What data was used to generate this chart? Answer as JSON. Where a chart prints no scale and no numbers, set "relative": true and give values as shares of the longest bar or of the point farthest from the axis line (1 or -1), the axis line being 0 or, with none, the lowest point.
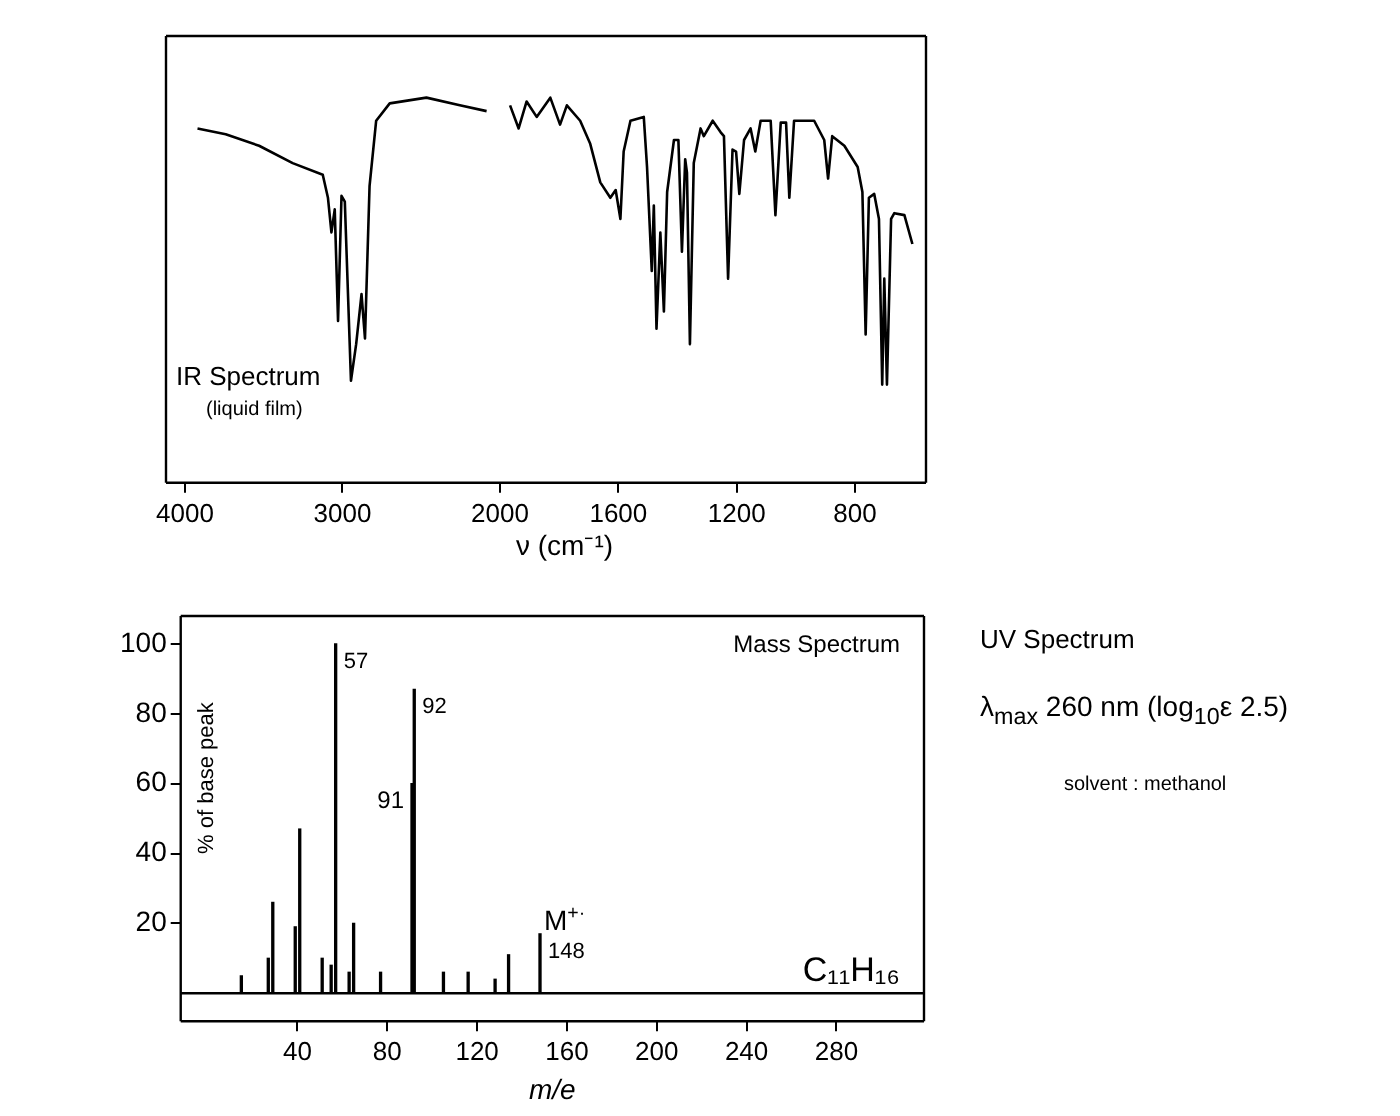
{
  "chart_data": [
    {
      "type": "line",
      "title": "IR Spectrum",
      "subtitle": "(liquid film)",
      "relative": true,
      "color": "#000000",
      "marker": "none",
      "legend": false,
      "grid": false,
      "x": [
        3920,
        3741,
        3529,
        3316,
        3125,
        3092,
        3070,
        3049,
        3028,
        3006,
        2985,
        2946,
        2913,
        2879,
        2857,
        2828,
        2786,
        2700,
        2467,
        2255,
        2085
      ],
      "values": [
        0.92,
        0.905,
        0.875,
        0.83,
        0.8,
        0.74,
        0.65,
        0.71,
        0.42,
        0.745,
        0.73,
        0.265,
        0.36,
        0.49,
        0.375,
        0.77,
        0.94,
        0.985,
        1.0,
        0.98,
        0.965
      ],
      "xlim": [
        4120,
        2000
      ],
      "xticks": [
        4000,
        3000,
        2000
      ]
    },
    {
      "type": "line",
      "xlabel": "ν (cm⁻¹)",
      "relative": true,
      "color": "#000000",
      "marker": "none",
      "legend": false,
      "grid": false,
      "x": [
        1966,
        1937,
        1910,
        1876,
        1830,
        1797,
        1774,
        1729,
        1695,
        1661,
        1627,
        1609,
        1593,
        1582,
        1559,
        1514,
        1503,
        1487,
        1480,
        1471,
        1458,
        1446,
        1435,
        1412,
        1397,
        1385,
        1374,
        1368,
        1358,
        1345,
        1322,
        1311,
        1281,
        1254,
        1243,
        1229,
        1214,
        1202,
        1191,
        1175,
        1153,
        1137,
        1119,
        1085,
        1069,
        1051,
        1033,
        1022,
        1006,
        938,
        904,
        891,
        877,
        836,
        791,
        775,
        764,
        753,
        735,
        719,
        708,
        701,
        692,
        678,
        667,
        633,
        606
      ],
      "values": [
        0.98,
        0.92,
        0.99,
        0.95,
        1.0,
        0.93,
        0.98,
        0.94,
        0.88,
        0.78,
        0.74,
        0.76,
        0.685,
        0.86,
        0.94,
        0.95,
        0.82,
        0.55,
        0.72,
        0.4,
        0.65,
        0.445,
        0.755,
        0.89,
        0.89,
        0.6,
        0.84,
        0.805,
        0.36,
        0.83,
        0.92,
        0.9,
        0.94,
        0.91,
        0.9,
        0.53,
        0.865,
        0.86,
        0.75,
        0.89,
        0.92,
        0.86,
        0.94,
        0.94,
        0.695,
        0.935,
        0.935,
        0.74,
        0.94,
        0.94,
        0.89,
        0.79,
        0.9,
        0.875,
        0.82,
        0.755,
        0.385,
        0.74,
        0.75,
        0.685,
        0.255,
        0.53,
        0.255,
        0.685,
        0.7,
        0.695,
        0.62
      ],
      "xlim": [
        2000,
        560
      ],
      "xticks": [
        1600,
        1200,
        800
      ]
    },
    {
      "type": "bar",
      "title": "Mass Spectrum",
      "xlabel": "m/e",
      "ylabel": "% of base peak",
      "color": "#000000",
      "legend": false,
      "grid": false,
      "x": [
        15,
        27,
        29,
        39,
        41,
        51,
        55,
        57,
        63,
        65,
        77,
        91,
        92,
        105,
        116,
        128,
        134,
        148
      ],
      "values": [
        5,
        10,
        26,
        19,
        47,
        10,
        8,
        100,
        6,
        20,
        6,
        60,
        87,
        6,
        6,
        4,
        11,
        17
      ],
      "xlim": [
        -12,
        319
      ],
      "xticks": [
        40,
        80,
        120,
        160,
        200,
        240,
        280
      ],
      "ylim": [
        -8,
        108
      ],
      "yticks": [
        20,
        40,
        60,
        80,
        100
      ],
      "ref_lines": [
        {
          "axis": "y",
          "value": 0
        }
      ],
      "annotations": [
        {
          "text": "57",
          "x": 57,
          "y": 100
        },
        {
          "text": "92",
          "x": 92,
          "y": 87
        },
        {
          "text": "91",
          "x": 91,
          "y": 60
        },
        {
          "text": "M$^{+·}$",
          "x": 148,
          "y": 17
        },
        {
          "text": "148",
          "x": 148,
          "y": 17
        },
        "C₁₁H₁₆"
      ]
    },
    {
      "type": "other",
      "title": "UV Spectrum",
      "annotations": [
        "λ$_{max}$ 260 nm  (log$_{10}$ε 2.5)",
        "solvent : methanol"
      ]
    }
  ]
}
